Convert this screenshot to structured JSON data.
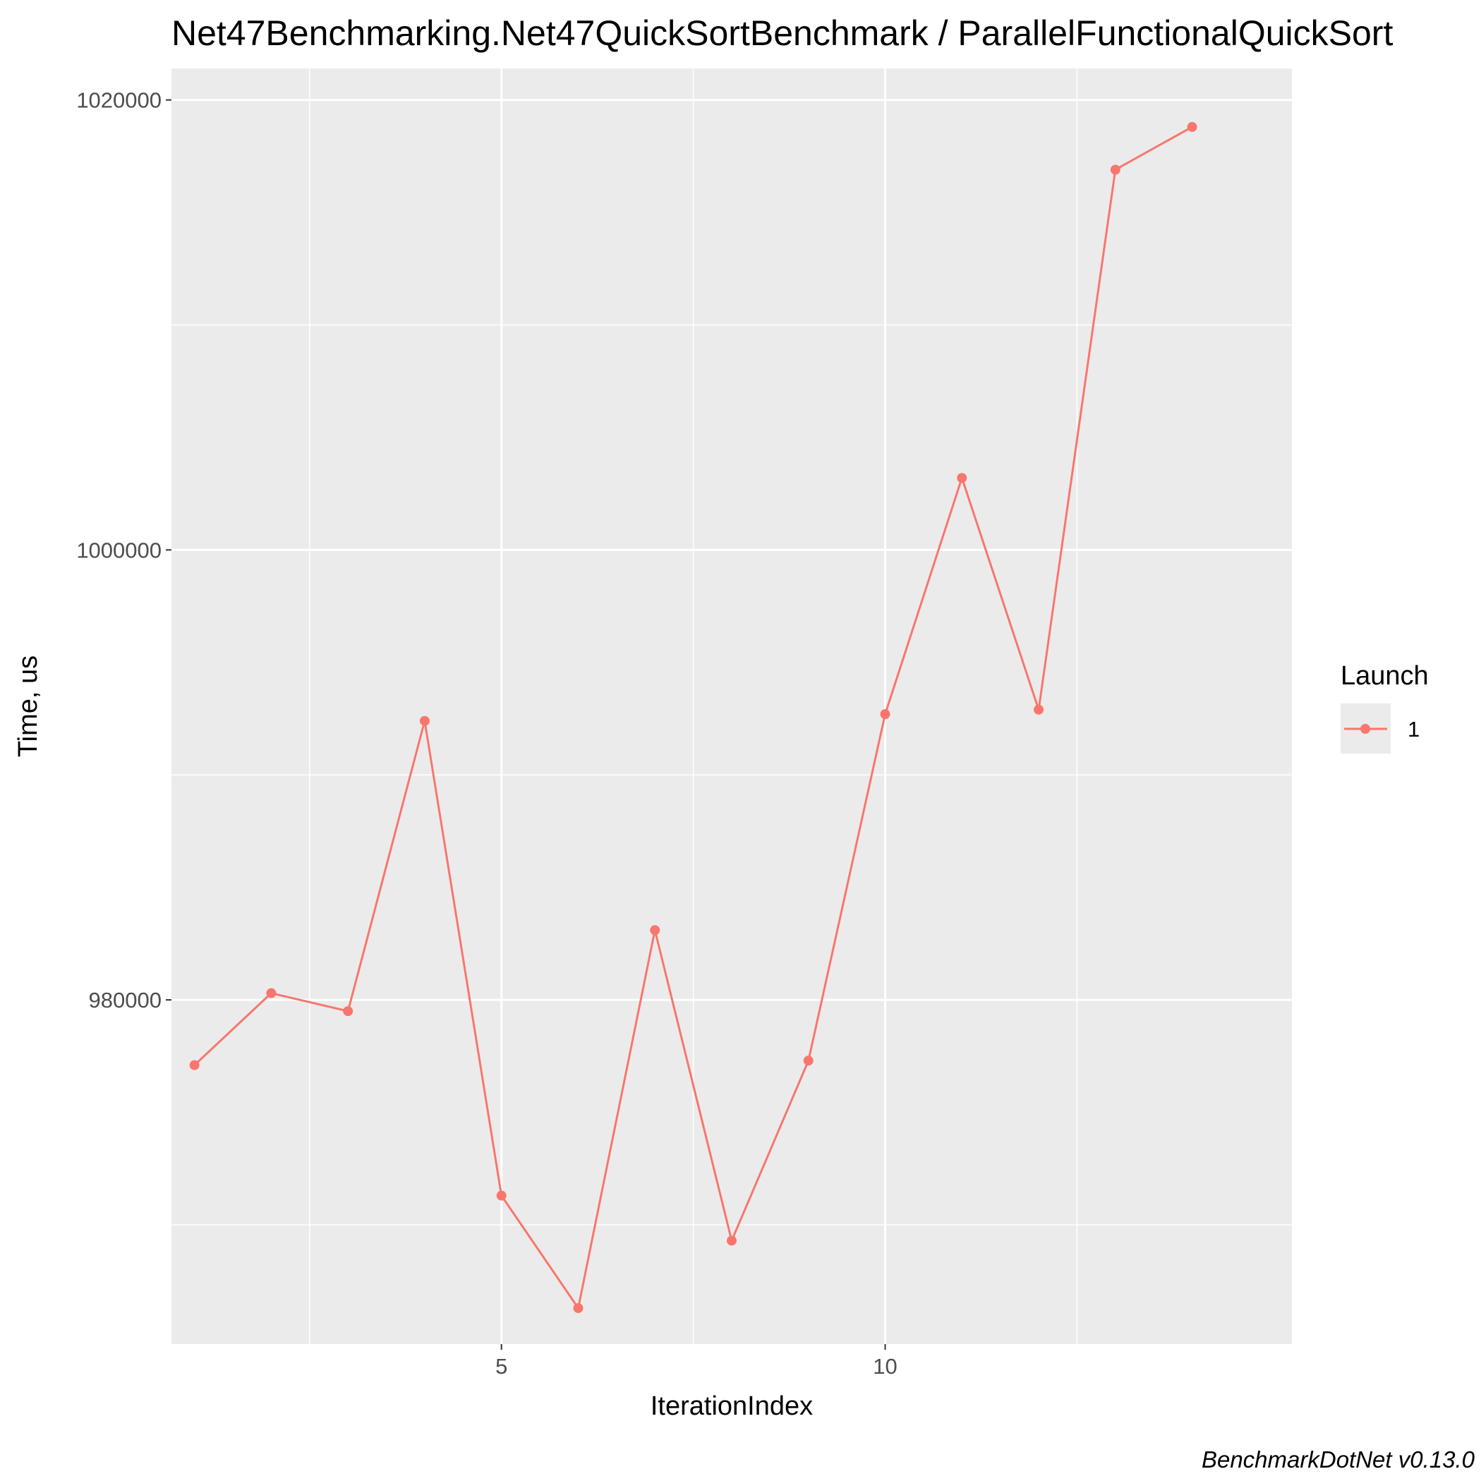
{
  "chart_data": {
    "type": "line",
    "title": "Net47Benchmarking.Net47QuickSortBenchmark / ParallelFunctionalQuickSort",
    "xlabel": "IterationIndex",
    "ylabel": "Time, us",
    "caption": "BenchmarkDotNet v0.13.0",
    "xlim": [
      0.7,
      15.3
    ],
    "ylim": [
      964700,
      1021400
    ],
    "x_ticks": [
      5,
      10
    ],
    "y_ticks": [
      980000,
      1000000,
      1020000
    ],
    "x_minor": [
      2.5,
      7.5,
      12.5
    ],
    "y_minor": [
      970000,
      990000,
      1010000
    ],
    "grid": true,
    "legend": {
      "title": "Launch",
      "position": "right",
      "entries": [
        {
          "label": "1",
          "color": "#F8766D"
        }
      ]
    },
    "series": [
      {
        "name": "1",
        "color": "#F8766D",
        "x": [
          1,
          2,
          3,
          4,
          5,
          6,
          7,
          8,
          9,
          10,
          11,
          12,
          13,
          14
        ],
        "values": [
          977100,
          980300,
          979500,
          992400,
          971300,
          966300,
          983100,
          969300,
          977300,
          992700,
          1003200,
          992900,
          1016900,
          1018800
        ]
      }
    ]
  }
}
